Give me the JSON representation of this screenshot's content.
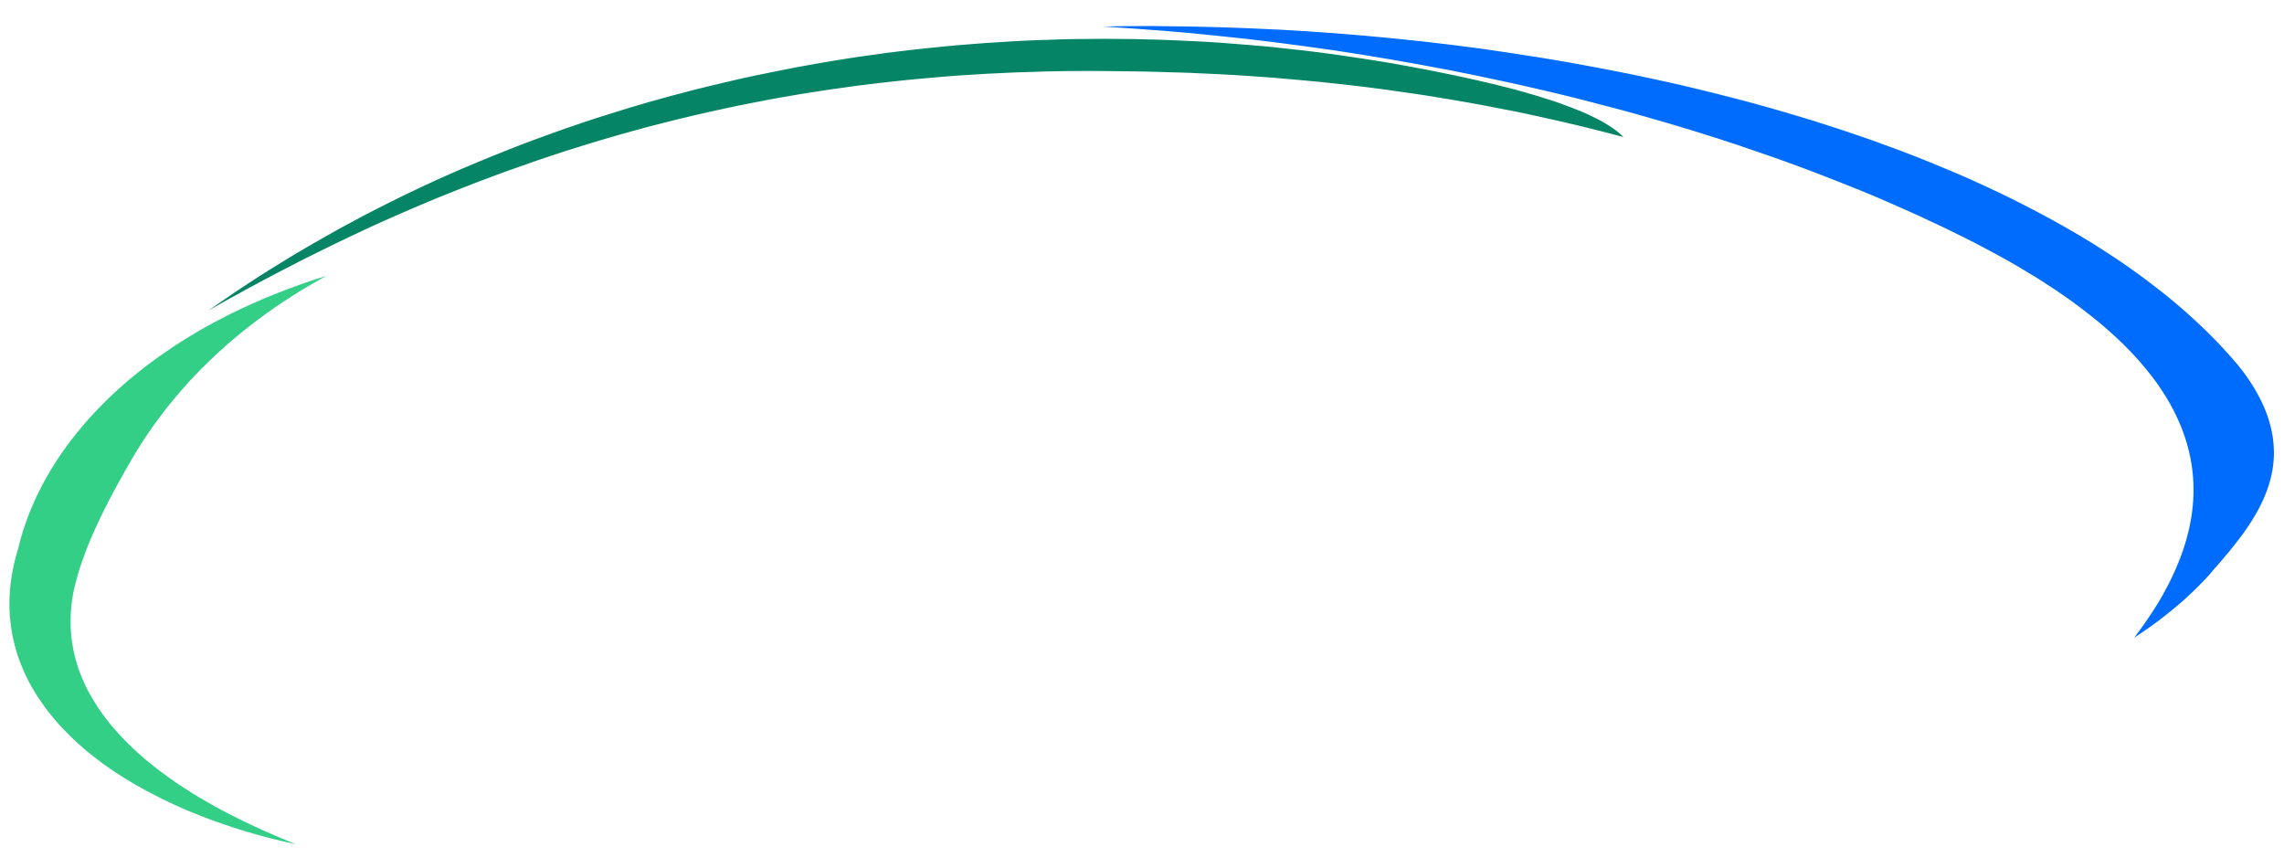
{
  "graphic": {
    "name": "swoosh-ring-logo",
    "swooshes": [
      {
        "name": "blue-swoosh",
        "color": "#006cfe"
      },
      {
        "name": "dark-green-swoosh",
        "color": "#058466"
      },
      {
        "name": "light-green-swoosh",
        "color": "#33cf87"
      }
    ]
  }
}
